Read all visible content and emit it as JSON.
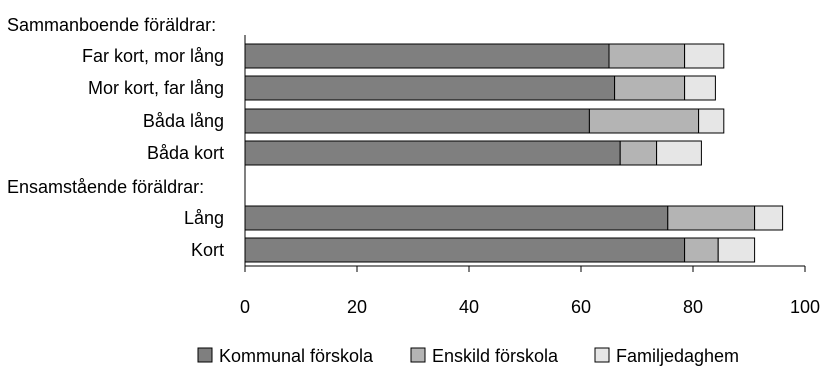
{
  "chart_data": {
    "type": "bar",
    "orientation": "horizontal",
    "stacked": true,
    "title": "",
    "xlabel": "",
    "ylabel": "",
    "xlim": [
      0,
      100
    ],
    "x_ticks": [
      0,
      20,
      40,
      60,
      80,
      100
    ],
    "grid": false,
    "legend_position": "bottom",
    "groups": [
      {
        "label": "Sammanboende föräldrar:",
        "categories": [
          "Far kort, mor lång",
          "Mor kort, far lång",
          "Båda lång",
          "Båda kort"
        ]
      },
      {
        "label": "Ensamstående föräldrar:",
        "categories": [
          "Lång",
          "Kort"
        ]
      }
    ],
    "categories": [
      "Far kort, mor lång",
      "Mor kort, far lång",
      "Båda lång",
      "Båda kort",
      "Lång",
      "Kort"
    ],
    "series": [
      {
        "name": "Kommunal förskola",
        "color": "#7f7f7f",
        "values": [
          65,
          66,
          61.5,
          67,
          75.5,
          78.5
        ]
      },
      {
        "name": "Enskild förskola",
        "color": "#b4b4b4",
        "values": [
          13.5,
          12.5,
          19.5,
          6.5,
          15.5,
          6
        ]
      },
      {
        "name": "Familjedaghem",
        "color": "#e6e6e6",
        "values": [
          7,
          5.5,
          4.5,
          8,
          5,
          6.5
        ]
      }
    ]
  }
}
